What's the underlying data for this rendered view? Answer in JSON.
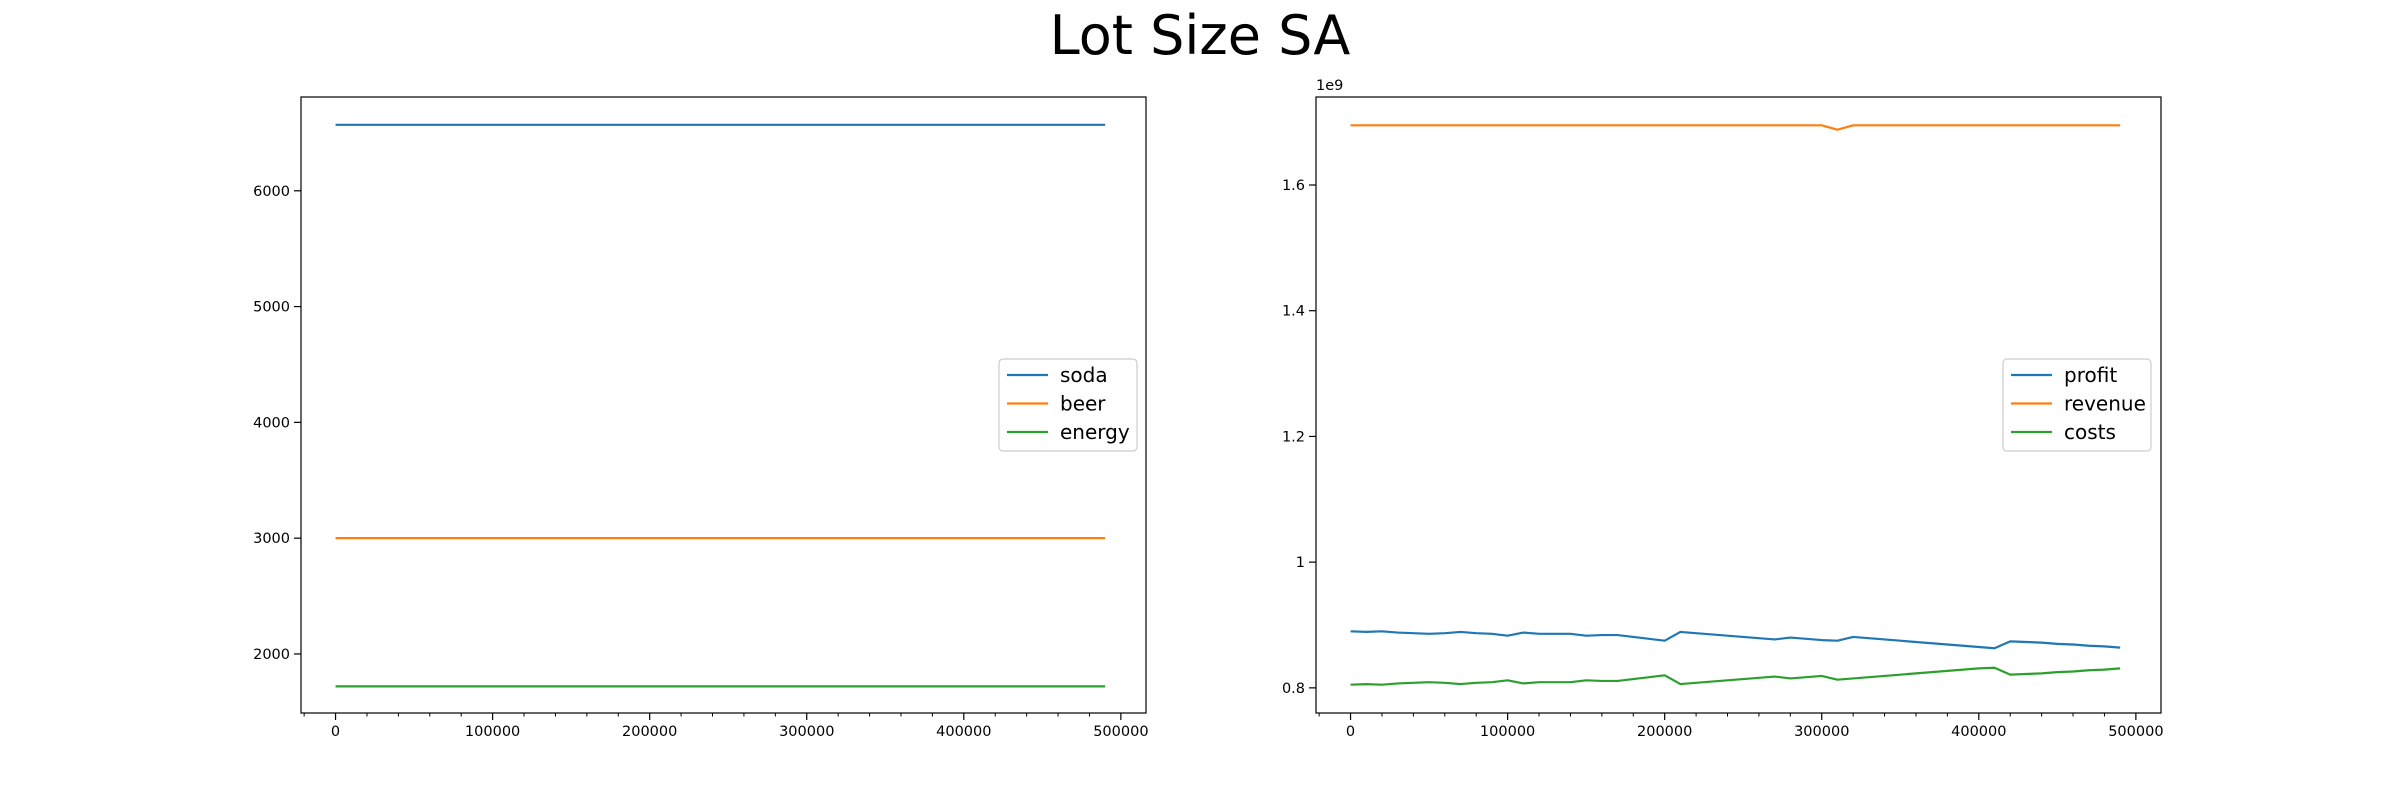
{
  "figure": {
    "title": "Lot Size SA"
  },
  "colors": {
    "blue": "#1f77b4",
    "orange": "#ff7f0e",
    "green": "#2ca02c"
  },
  "chart_data": [
    {
      "type": "line",
      "xlim": [
        -22000,
        516000
      ],
      "ylim": [
        1490,
        6810
      ],
      "xticks": [
        0,
        100000,
        200000,
        300000,
        400000,
        500000
      ],
      "yticks": [
        2000,
        3000,
        4000,
        5000,
        6000
      ],
      "y_offset_text": "",
      "legend_loc": "center-right",
      "grid": false,
      "series": [
        {
          "name": "soda",
          "color": "#1f77b4",
          "x": [
            0,
            490000
          ],
          "y": [
            6570,
            6570
          ]
        },
        {
          "name": "beer",
          "color": "#ff7f0e",
          "x": [
            0,
            490000
          ],
          "y": [
            3000,
            3000
          ]
        },
        {
          "name": "energy",
          "color": "#2ca02c",
          "x": [
            0,
            490000
          ],
          "y": [
            1720,
            1720
          ]
        }
      ]
    },
    {
      "type": "line",
      "xlim": [
        -22000,
        516000
      ],
      "ylim": [
        0.76,
        1.74
      ],
      "xticks": [
        0,
        100000,
        200000,
        300000,
        400000,
        500000
      ],
      "yticks": [
        0.8,
        1.0,
        1.2,
        1.4,
        1.6
      ],
      "y_offset_text": "1e9",
      "legend_loc": "center-right",
      "grid": false,
      "series": [
        {
          "name": "profit",
          "color": "#1f77b4",
          "x": [
            0,
            10000,
            20000,
            30000,
            40000,
            50000,
            60000,
            70000,
            80000,
            90000,
            100000,
            110000,
            120000,
            130000,
            140000,
            150000,
            160000,
            170000,
            180000,
            190000,
            200000,
            210000,
            220000,
            230000,
            240000,
            250000,
            260000,
            270000,
            280000,
            290000,
            300000,
            310000,
            320000,
            330000,
            340000,
            350000,
            360000,
            370000,
            380000,
            390000,
            400000,
            410000,
            420000,
            430000,
            440000,
            450000,
            460000,
            470000,
            480000,
            490000
          ],
          "y": [
            0.89,
            0.889,
            0.89,
            0.888,
            0.887,
            0.886,
            0.887,
            0.889,
            0.887,
            0.886,
            0.883,
            0.888,
            0.886,
            0.886,
            0.886,
            0.883,
            0.884,
            0.884,
            0.881,
            0.878,
            0.875,
            0.889,
            0.887,
            0.885,
            0.883,
            0.881,
            0.879,
            0.877,
            0.88,
            0.878,
            0.876,
            0.875,
            0.881,
            0.879,
            0.877,
            0.875,
            0.873,
            0.871,
            0.869,
            0.867,
            0.865,
            0.863,
            0.874,
            0.873,
            0.872,
            0.87,
            0.869,
            0.867,
            0.866,
            0.864
          ]
        },
        {
          "name": "revenue",
          "color": "#ff7f0e",
          "x": [
            0,
            100000,
            200000,
            300000,
            310000,
            320000,
            400000,
            490000
          ],
          "y": [
            1.695,
            1.695,
            1.695,
            1.695,
            1.688,
            1.695,
            1.695,
            1.695
          ]
        },
        {
          "name": "costs",
          "color": "#2ca02c",
          "x": [
            0,
            10000,
            20000,
            30000,
            40000,
            50000,
            60000,
            70000,
            80000,
            90000,
            100000,
            110000,
            120000,
            130000,
            140000,
            150000,
            160000,
            170000,
            180000,
            190000,
            200000,
            210000,
            220000,
            230000,
            240000,
            250000,
            260000,
            270000,
            280000,
            290000,
            300000,
            310000,
            320000,
            330000,
            340000,
            350000,
            360000,
            370000,
            380000,
            390000,
            400000,
            410000,
            420000,
            430000,
            440000,
            450000,
            460000,
            470000,
            480000,
            490000
          ],
          "y": [
            0.805,
            0.806,
            0.805,
            0.807,
            0.808,
            0.809,
            0.808,
            0.806,
            0.808,
            0.809,
            0.812,
            0.807,
            0.809,
            0.809,
            0.809,
            0.812,
            0.811,
            0.811,
            0.814,
            0.817,
            0.82,
            0.806,
            0.808,
            0.81,
            0.812,
            0.814,
            0.816,
            0.818,
            0.815,
            0.817,
            0.819,
            0.813,
            0.815,
            0.817,
            0.819,
            0.821,
            0.823,
            0.825,
            0.827,
            0.829,
            0.831,
            0.832,
            0.821,
            0.822,
            0.823,
            0.825,
            0.826,
            0.828,
            0.829,
            0.831
          ]
        }
      ]
    }
  ]
}
